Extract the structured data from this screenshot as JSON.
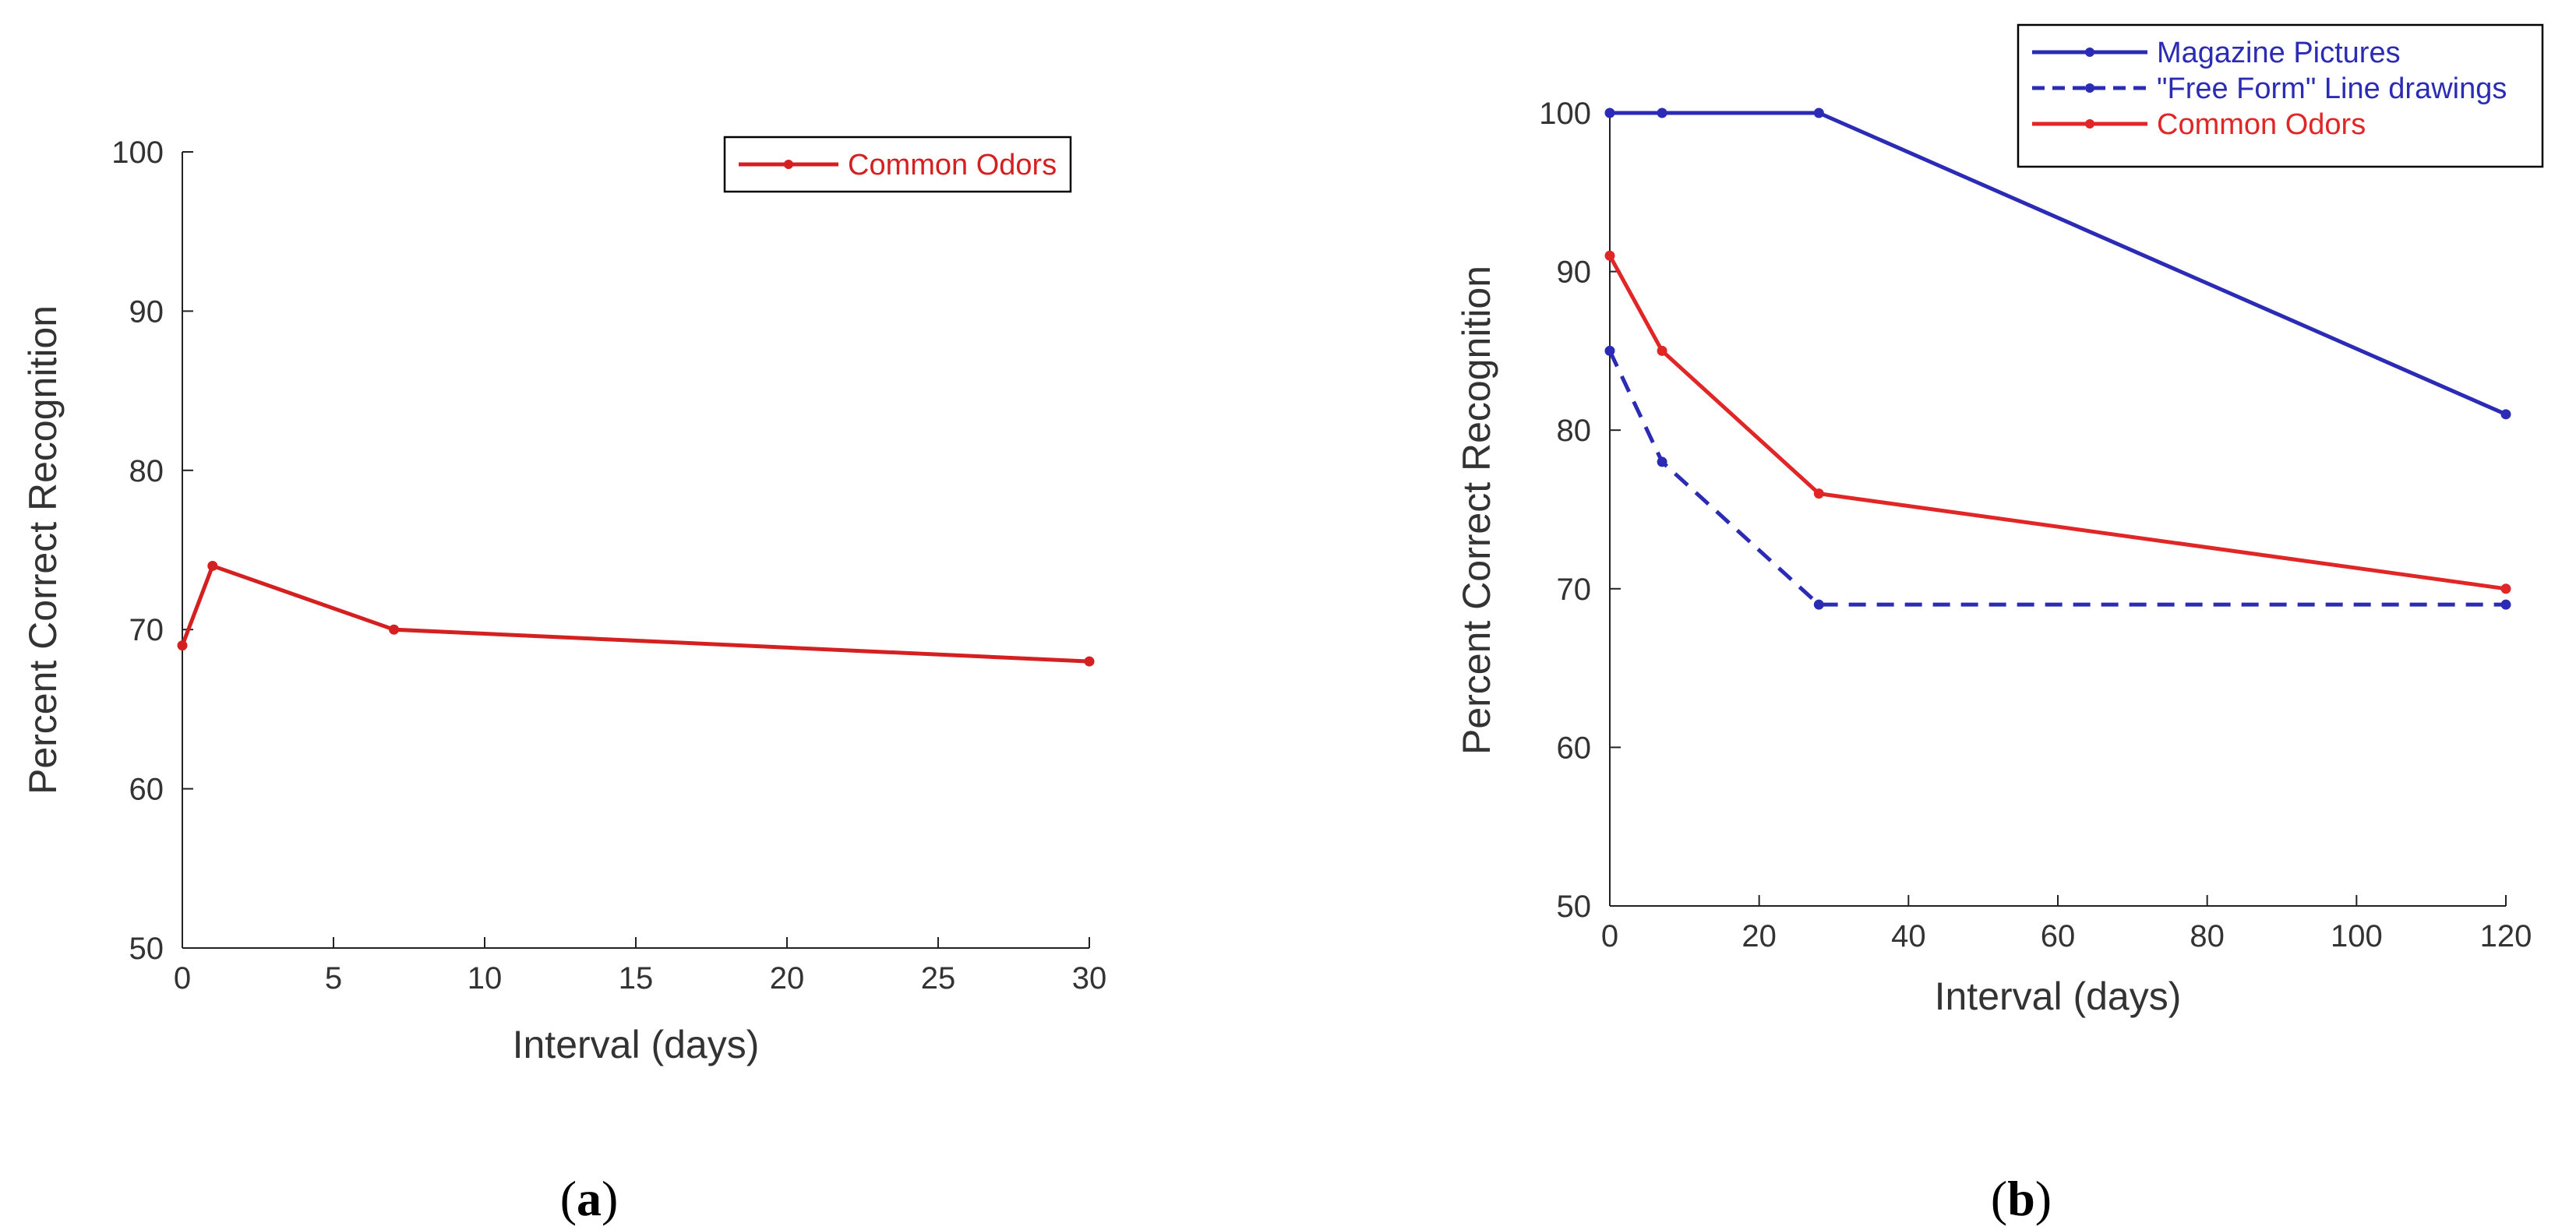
{
  "chart_data": [
    {
      "type": "line",
      "panel_label": "a",
      "xlabel": "Interval (days)",
      "ylabel": "Percent Correct Recognition",
      "xlim": [
        0,
        30
      ],
      "ylim": [
        50,
        100
      ],
      "xticks": [
        0,
        5,
        10,
        15,
        20,
        25,
        30
      ],
      "yticks": [
        50,
        60,
        70,
        80,
        90,
        100
      ],
      "grid": false,
      "legend_position": "top-right",
      "series": [
        {
          "name": "Common Odors",
          "color": "#d42020",
          "dashed": false,
          "points": [
            {
              "x": 0,
              "y": 69
            },
            {
              "x": 1,
              "y": 74
            },
            {
              "x": 7,
              "y": 70
            },
            {
              "x": 30,
              "y": 68
            }
          ]
        }
      ]
    },
    {
      "type": "line",
      "panel_label": "b",
      "xlabel": "Interval (days)",
      "ylabel": "Percent Correct Recognition",
      "xlim": [
        0,
        120
      ],
      "ylim": [
        50,
        100
      ],
      "xticks": [
        0,
        20,
        40,
        60,
        80,
        100,
        120
      ],
      "yticks": [
        50,
        60,
        70,
        80,
        90,
        100
      ],
      "grid": false,
      "legend_position": "top-right",
      "series": [
        {
          "name": "Magazine Pictures",
          "color": "#2b2bb5",
          "dashed": false,
          "points": [
            {
              "x": 0,
              "y": 100
            },
            {
              "x": 7,
              "y": 100
            },
            {
              "x": 28,
              "y": 100
            },
            {
              "x": 120,
              "y": 81
            }
          ]
        },
        {
          "name": "\"Free Form\" Line drawings",
          "color": "#2b2bb5",
          "dashed": true,
          "points": [
            {
              "x": 0,
              "y": 85
            },
            {
              "x": 7,
              "y": 78
            },
            {
              "x": 28,
              "y": 69
            },
            {
              "x": 120,
              "y": 69
            }
          ]
        },
        {
          "name": "Common Odors",
          "color": "#e02626",
          "dashed": false,
          "points": [
            {
              "x": 0,
              "y": 91
            },
            {
              "x": 7,
              "y": 85
            },
            {
              "x": 28,
              "y": 76
            },
            {
              "x": 120,
              "y": 70
            }
          ]
        }
      ]
    }
  ]
}
